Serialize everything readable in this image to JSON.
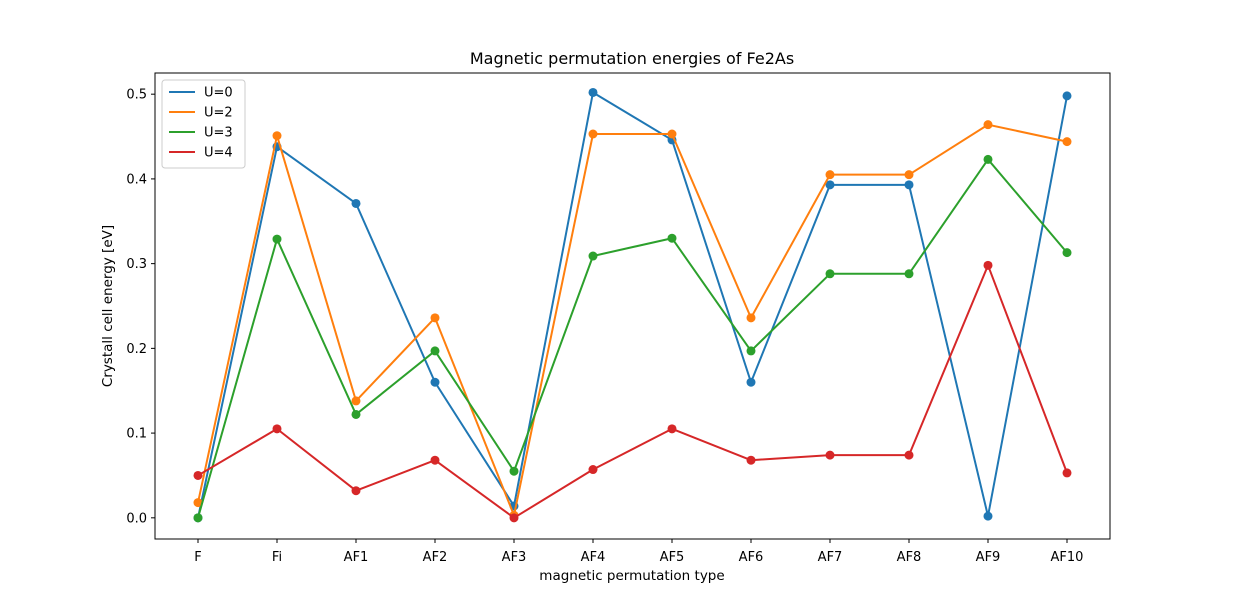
{
  "chart_data": {
    "type": "line",
    "title": "Magnetic permutation energies of Fe2As",
    "xlabel": "magnetic permutation type",
    "ylabel": "Crystall cell energy [eV]",
    "categories": [
      "F",
      "Fi",
      "AF1",
      "AF2",
      "AF3",
      "AF4",
      "AF5",
      "AF6",
      "AF7",
      "AF8",
      "AF9",
      "AF10"
    ],
    "ylim": [
      -0.025,
      0.525
    ],
    "yticks": [
      "0.0",
      "0.1",
      "0.2",
      "0.3",
      "0.4",
      "0.5"
    ],
    "grid": false,
    "legend_position": "top-left",
    "markers": true,
    "series": [
      {
        "name": "U=0",
        "color": "#1f77b4",
        "values": [
          0.0,
          0.438,
          0.371,
          0.16,
          0.014,
          0.502,
          0.446,
          0.16,
          0.393,
          0.393,
          0.002,
          0.498
        ]
      },
      {
        "name": "U=2",
        "color": "#ff7f0e",
        "values": [
          0.018,
          0.451,
          0.138,
          0.236,
          0.003,
          0.453,
          0.453,
          0.236,
          0.405,
          0.405,
          0.464,
          0.444
        ]
      },
      {
        "name": "U=3",
        "color": "#2ca02c",
        "values": [
          0.0,
          0.329,
          0.122,
          0.197,
          0.055,
          0.309,
          0.33,
          0.197,
          0.288,
          0.288,
          0.423,
          0.313
        ]
      },
      {
        "name": "U=4",
        "color": "#d62728",
        "values": [
          0.05,
          0.105,
          0.032,
          0.068,
          0.0,
          0.057,
          0.105,
          0.068,
          0.074,
          0.074,
          0.298,
          0.053
        ]
      }
    ]
  }
}
